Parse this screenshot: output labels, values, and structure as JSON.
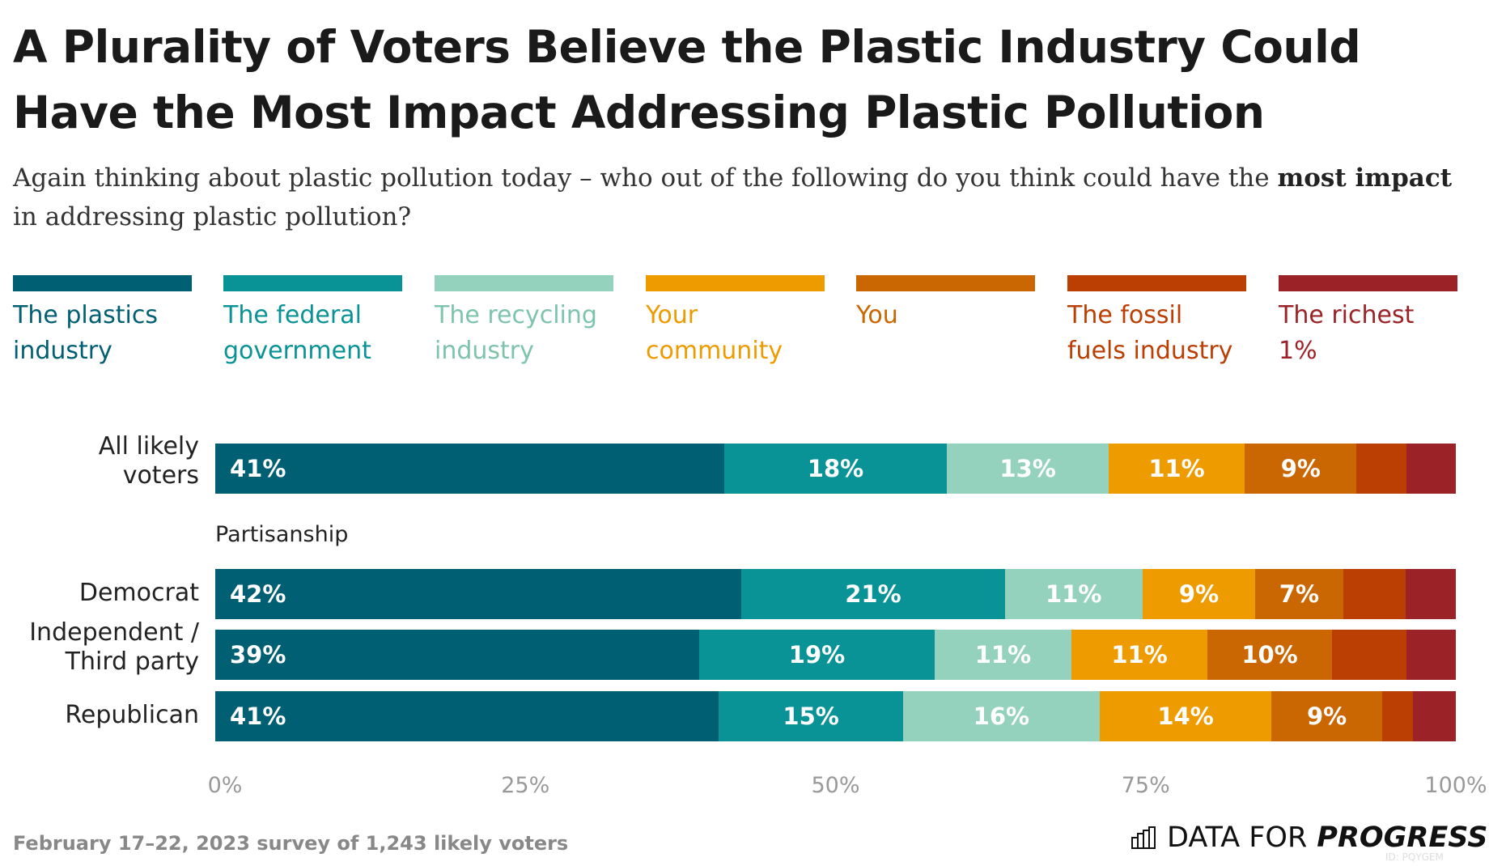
{
  "title": "A Plurality of Voters Believe the Plastic Industry Could Have the Most Impact Addressing Plastic Pollution",
  "subtitle": {
    "before": "Again thinking about plastic pollution today – who out of the following do you think could have the ",
    "bold": "most impact",
    "after": " in addressing plastic pollution?"
  },
  "footer": "February 17–22, 2023 survey of 1,243 likely voters",
  "logo": {
    "text_light": "DATA FOR",
    "text_bold": "PROGRESS",
    "id": "ID: PQYGEM"
  },
  "chart_data": {
    "type": "bar",
    "orientation": "horizontal",
    "stacked": true,
    "legend_position": "top",
    "xlim": [
      0,
      100
    ],
    "x_ticks": [
      "0%",
      "25%",
      "50%",
      "75%",
      "100%"
    ],
    "group_label": "Partisanship",
    "series": [
      {
        "name": "The plastics industry",
        "color": "#005f73"
      },
      {
        "name": "The federal government",
        "color": "#0a9396"
      },
      {
        "name": "The recycling industry",
        "color": "#94d2bd"
      },
      {
        "name": "Your community",
        "color": "#ee9b00"
      },
      {
        "name": "You",
        "color": "#ca6702"
      },
      {
        "name": "The fossil fuels industry",
        "color": "#bb3e03"
      },
      {
        "name": "The richest 1%",
        "color": "#9b2226"
      }
    ],
    "categories": [
      "All likely voters",
      "Democrat",
      "Independent / Third party",
      "Republican"
    ],
    "values": [
      [
        41,
        18,
        13,
        11,
        9,
        4,
        4
      ],
      [
        42,
        21,
        11,
        9,
        7,
        5,
        4
      ],
      [
        39,
        19,
        11,
        11,
        10,
        6,
        4
      ],
      [
        41,
        15,
        16,
        14,
        9,
        2.5,
        3.5
      ]
    ],
    "labels": [
      [
        "41%",
        "18%",
        "13%",
        "11%",
        "9%",
        "",
        ""
      ],
      [
        "42%",
        "21%",
        "11%",
        "9%",
        "7%",
        "",
        ""
      ],
      [
        "39%",
        "19%",
        "11%",
        "11%",
        "10%",
        "",
        ""
      ],
      [
        "41%",
        "15%",
        "16%",
        "14%",
        "9%",
        "",
        ""
      ]
    ]
  }
}
